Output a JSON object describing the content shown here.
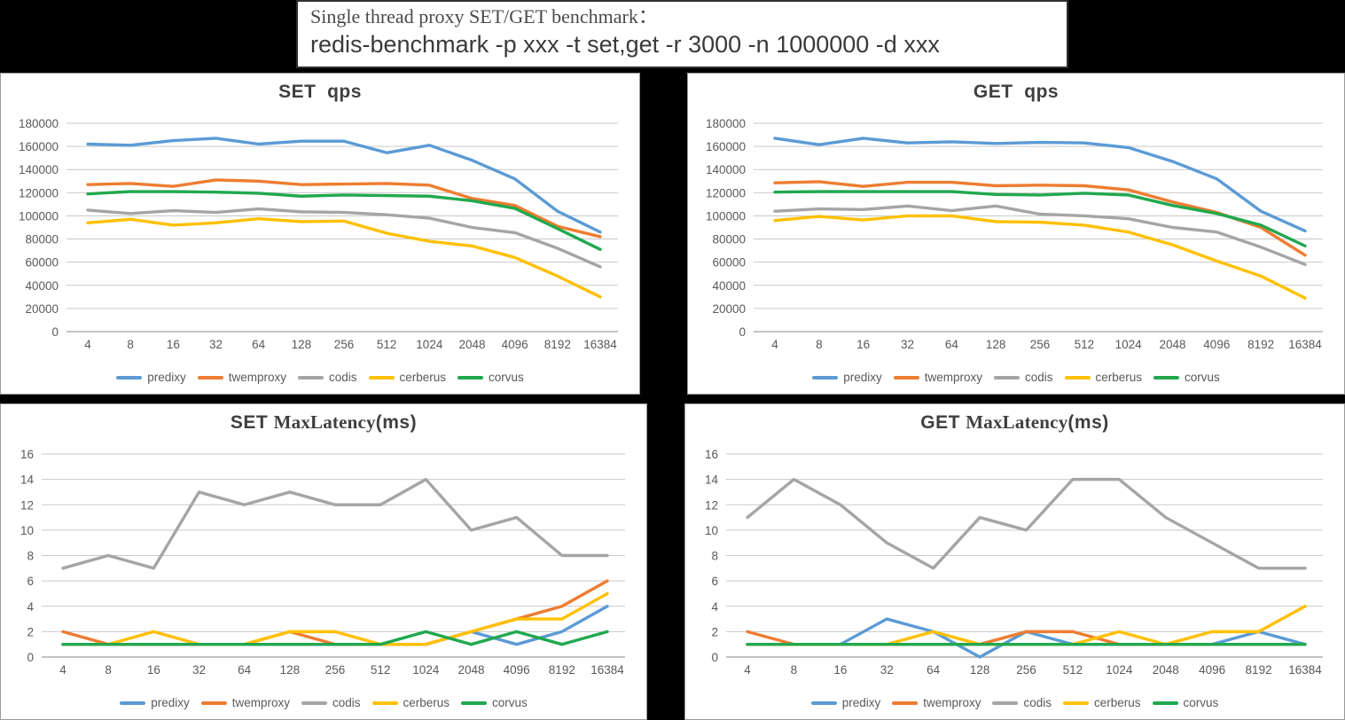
{
  "header": {
    "title_line1": "Single thread proxy SET/GET benchmark：",
    "title_line2": "redis-benchmark -p xxx -t set,get -r 3000 -n 1000000 -d xxx"
  },
  "colors": {
    "predixy": "#5B9BD5",
    "twemproxy": "#ED7D31",
    "codis": "#A5A5A5",
    "cerberus": "#FFC000",
    "corvus": "#21A84F",
    "gridline": "#C9C9C9",
    "axis_text": "#595959",
    "chart_title_text": "#3F3F3F"
  },
  "legend_labels": [
    "predixy",
    "twemproxy",
    "codis",
    "cerberus",
    "corvus"
  ],
  "chart_data": [
    {
      "id": "set-qps",
      "type": "line",
      "title": {
        "t1": "SET  qps",
        "t2": "",
        "t3": ""
      },
      "xlabel": "",
      "ylabel": "",
      "ylim": [
        0,
        180000
      ],
      "ystep": 20000,
      "grid": true,
      "legend_position": "bottom",
      "categories": [
        "4",
        "8",
        "16",
        "32",
        "64",
        "128",
        "256",
        "512",
        "1024",
        "2048",
        "4096",
        "8192",
        "16384"
      ],
      "series": [
        {
          "name": "predixy",
          "color": "#5B9BD5",
          "values": [
            162000,
            161000,
            165000,
            167000,
            162000,
            164500,
            164500,
            154500,
            161000,
            148000,
            132000,
            104000,
            86000
          ]
        },
        {
          "name": "twemproxy",
          "color": "#ED7D31",
          "values": [
            127000,
            128000,
            125500,
            131000,
            130000,
            127000,
            127500,
            128000,
            126500,
            115000,
            109000,
            91000,
            82000
          ]
        },
        {
          "name": "codis",
          "color": "#A5A5A5",
          "values": [
            105000,
            102000,
            104500,
            103000,
            106000,
            103500,
            103000,
            101000,
            98000,
            90000,
            85500,
            72000,
            56000
          ]
        },
        {
          "name": "cerberus",
          "color": "#FFC000",
          "values": [
            94000,
            97000,
            92000,
            94000,
            97500,
            95000,
            95500,
            85000,
            78000,
            74000,
            64000,
            48000,
            30000
          ]
        },
        {
          "name": "corvus",
          "color": "#21A84F",
          "values": [
            119000,
            121000,
            121000,
            120500,
            119500,
            117000,
            118000,
            117500,
            117000,
            113000,
            106500,
            89000,
            71000
          ]
        }
      ]
    },
    {
      "id": "get-qps",
      "type": "line",
      "title": {
        "t1": "GET  qps",
        "t2": "",
        "t3": ""
      },
      "xlabel": "",
      "ylabel": "",
      "ylim": [
        0,
        180000
      ],
      "ystep": 20000,
      "grid": true,
      "legend_position": "bottom",
      "categories": [
        "4",
        "8",
        "16",
        "32",
        "64",
        "128",
        "256",
        "512",
        "1024",
        "2048",
        "4096",
        "8192",
        "16384"
      ],
      "series": [
        {
          "name": "predixy",
          "color": "#5B9BD5",
          "values": [
            167000,
            161500,
            167000,
            163000,
            164000,
            162500,
            163500,
            163000,
            159000,
            147000,
            132000,
            104000,
            87000
          ]
        },
        {
          "name": "twemproxy",
          "color": "#ED7D31",
          "values": [
            128500,
            129500,
            125500,
            129000,
            129000,
            126000,
            126500,
            126000,
            122500,
            112000,
            103000,
            90000,
            66000
          ]
        },
        {
          "name": "codis",
          "color": "#A5A5A5",
          "values": [
            104000,
            106000,
            105500,
            108500,
            104500,
            108500,
            101500,
            100000,
            97500,
            90000,
            86000,
            73000,
            58000
          ]
        },
        {
          "name": "cerberus",
          "color": "#FFC000",
          "values": [
            96000,
            99500,
            96500,
            100000,
            100000,
            95000,
            94500,
            92000,
            86000,
            75000,
            61000,
            48000,
            29000
          ]
        },
        {
          "name": "corvus",
          "color": "#21A84F",
          "values": [
            120500,
            121000,
            121000,
            121000,
            121000,
            118500,
            118000,
            119500,
            118000,
            109000,
            102000,
            92000,
            74000
          ]
        }
      ]
    },
    {
      "id": "set-maxlatency",
      "type": "line",
      "title": {
        "t1": "SET ",
        "t2": "MaxLatency",
        "t3": "(ms)"
      },
      "xlabel": "",
      "ylabel": "",
      "ylim": [
        0,
        16
      ],
      "ystep": 2,
      "grid": true,
      "legend_position": "bottom",
      "categories": [
        "4",
        "8",
        "16",
        "32",
        "64",
        "128",
        "256",
        "512",
        "1024",
        "2048",
        "4096",
        "8192",
        "16384"
      ],
      "series": [
        {
          "name": "predixy",
          "color": "#5B9BD5",
          "values": [
            1,
            1,
            1,
            1,
            1,
            1,
            1,
            1,
            1,
            2,
            1,
            2,
            4
          ]
        },
        {
          "name": "twemproxy",
          "color": "#ED7D31",
          "values": [
            2,
            1,
            1,
            1,
            1,
            2,
            1,
            1,
            1,
            2,
            3,
            4,
            6
          ]
        },
        {
          "name": "codis",
          "color": "#A5A5A5",
          "values": [
            7,
            8,
            7,
            13,
            12,
            13,
            12,
            12,
            14,
            10,
            11,
            8,
            8
          ]
        },
        {
          "name": "cerberus",
          "color": "#FFC000",
          "values": [
            1,
            1,
            2,
            1,
            1,
            2,
            2,
            1,
            1,
            2,
            3,
            3,
            5
          ]
        },
        {
          "name": "corvus",
          "color": "#21A84F",
          "values": [
            1,
            1,
            1,
            1,
            1,
            1,
            1,
            1,
            2,
            1,
            2,
            1,
            2
          ]
        }
      ]
    },
    {
      "id": "get-maxlatency",
      "type": "line",
      "title": {
        "t1": "GET ",
        "t2": "MaxLatency",
        "t3": "(ms)"
      },
      "xlabel": "",
      "ylabel": "",
      "ylim": [
        0,
        16
      ],
      "ystep": 2,
      "grid": true,
      "legend_position": "bottom",
      "categories": [
        "4",
        "8",
        "16",
        "32",
        "64",
        "128",
        "256",
        "512",
        "1024",
        "2048",
        "4096",
        "8192",
        "16384"
      ],
      "series": [
        {
          "name": "predixy",
          "color": "#5B9BD5",
          "values": [
            1,
            1,
            1,
            3,
            2,
            0,
            2,
            1,
            1,
            1,
            1,
            2,
            1
          ]
        },
        {
          "name": "twemproxy",
          "color": "#ED7D31",
          "values": [
            2,
            1,
            1,
            1,
            1,
            1,
            2,
            2,
            1,
            1,
            1,
            1,
            1
          ]
        },
        {
          "name": "codis",
          "color": "#A5A5A5",
          "values": [
            11,
            14,
            12,
            9,
            7,
            11,
            10,
            14,
            14,
            11,
            9,
            7,
            7
          ]
        },
        {
          "name": "cerberus",
          "color": "#FFC000",
          "values": [
            1,
            1,
            1,
            1,
            2,
            1,
            1,
            1,
            2,
            1,
            2,
            2,
            4
          ]
        },
        {
          "name": "corvus",
          "color": "#21A84F",
          "values": [
            1,
            1,
            1,
            1,
            1,
            1,
            1,
            1,
            1,
            1,
            1,
            1,
            1
          ]
        }
      ]
    }
  ]
}
